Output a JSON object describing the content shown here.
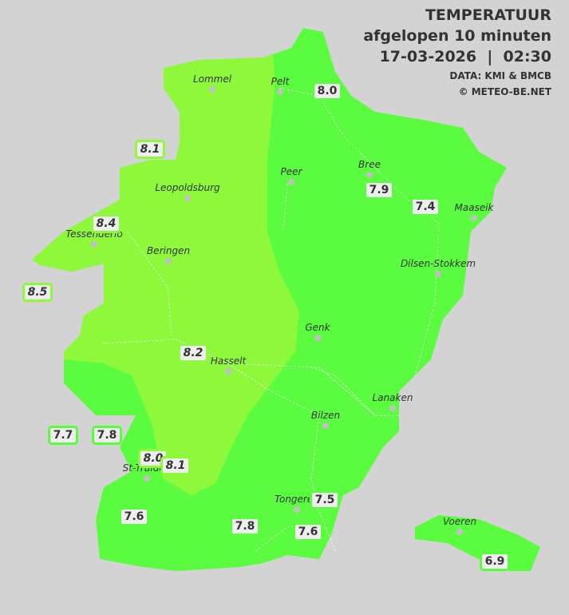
{
  "header": {
    "title": "TEMPERATUUR",
    "subtitle": "afgelopen 10 minuten",
    "datetime": "17-03-2026  |  02:30",
    "source": "DATA: KMI & BMCB",
    "copyright": "© METEO-BE.NET"
  },
  "colors": {
    "background": "#d3d3d3",
    "zone_8_to_9": "#8ef83a",
    "zone_7_to_8": "#5bfc40",
    "label_bg": "#eeeeee"
  },
  "cities": [
    {
      "name": "Lommel"
    },
    {
      "name": "Pelt"
    },
    {
      "name": "Leopoldsburg"
    },
    {
      "name": "Peer"
    },
    {
      "name": "Bree"
    },
    {
      "name": "Maaseik"
    },
    {
      "name": "Tessenderlo"
    },
    {
      "name": "Beringen"
    },
    {
      "name": "Dilsen-Stokkem"
    },
    {
      "name": "Genk"
    },
    {
      "name": "Hasselt"
    },
    {
      "name": "Lanaken"
    },
    {
      "name": "Bilzen"
    },
    {
      "name": "St-Truiden"
    },
    {
      "name": "Tongeren"
    },
    {
      "name": "Voeren"
    }
  ],
  "stations": [
    "8.0",
    "8.1",
    "7.9",
    "7.4",
    "8.4",
    "8.5",
    "8.2",
    "7.7",
    "7.8",
    "8.0",
    "8.1",
    "7.6",
    "7.5",
    "7.8",
    "7.6",
    "6.9"
  ]
}
